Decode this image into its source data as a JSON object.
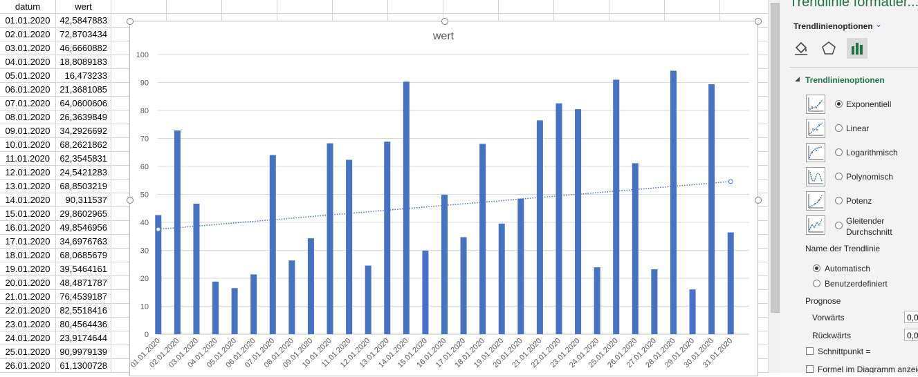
{
  "sheet": {
    "headers": {
      "date": "datum",
      "value": "wert"
    },
    "rows": [
      {
        "date": "01.01.2020",
        "value": "42,5847883"
      },
      {
        "date": "02.01.2020",
        "value": "72,8703434"
      },
      {
        "date": "03.01.2020",
        "value": "46,6660882"
      },
      {
        "date": "04.01.2020",
        "value": "18,8089183"
      },
      {
        "date": "05.01.2020",
        "value": "16,473233"
      },
      {
        "date": "06.01.2020",
        "value": "21,3681085"
      },
      {
        "date": "07.01.2020",
        "value": "64,0600606"
      },
      {
        "date": "08.01.2020",
        "value": "26,3639849"
      },
      {
        "date": "09.01.2020",
        "value": "34,2926692"
      },
      {
        "date": "10.01.2020",
        "value": "68,2621862"
      },
      {
        "date": "11.01.2020",
        "value": "62,3545831"
      },
      {
        "date": "12.01.2020",
        "value": "24,5421283"
      },
      {
        "date": "13.01.2020",
        "value": "68,8503219"
      },
      {
        "date": "14.01.2020",
        "value": "90,311537"
      },
      {
        "date": "15.01.2020",
        "value": "29,8602965"
      },
      {
        "date": "16.01.2020",
        "value": "49,8546956"
      },
      {
        "date": "17.01.2020",
        "value": "34,6976763"
      },
      {
        "date": "18.01.2020",
        "value": "68,0685679"
      },
      {
        "date": "19.01.2020",
        "value": "39,5464161"
      },
      {
        "date": "20.01.2020",
        "value": "48,4871787"
      },
      {
        "date": "21.01.2020",
        "value": "76,4539187"
      },
      {
        "date": "22.01.2020",
        "value": "82,5518416"
      },
      {
        "date": "23.01.2020",
        "value": "80,4564436"
      },
      {
        "date": "24.01.2020",
        "value": "23,9174644"
      },
      {
        "date": "25.01.2020",
        "value": "90,9979139"
      },
      {
        "date": "26.01.2020",
        "value": "61,1300728"
      }
    ]
  },
  "chart_data": {
    "type": "bar",
    "title": "wert",
    "categories": [
      "01.01.2020",
      "02.01.2020",
      "03.01.2020",
      "04.01.2020",
      "05.01.2020",
      "06.01.2020",
      "07.01.2020",
      "08.01.2020",
      "09.01.2020",
      "10.01.2020",
      "11.01.2020",
      "12.01.2020",
      "13.01.2020",
      "14.01.2020",
      "15.01.2020",
      "16.01.2020",
      "17.01.2020",
      "18.01.2020",
      "19.01.2020",
      "20.01.2020",
      "21.01.2020",
      "22.01.2020",
      "23.01.2020",
      "24.01.2020",
      "25.01.2020",
      "26.01.2020",
      "27.01.2020",
      "28.01.2020",
      "29.01.2020",
      "30.01.2020",
      "31.01.2020"
    ],
    "values": [
      42.5847883,
      72.8703434,
      46.6660882,
      18.8089183,
      16.473233,
      21.3681085,
      64.0600606,
      26.3639849,
      34.2926692,
      68.2621862,
      62.3545831,
      24.5421283,
      68.8503219,
      90.311537,
      29.8602965,
      49.8546956,
      34.6976763,
      68.0685679,
      39.5464161,
      48.4871787,
      76.4539187,
      82.5518416,
      80.4564436,
      23.9174644,
      90.9979139,
      61.1300728,
      23.2,
      94.2,
      16.0,
      89.4,
      36.4
    ],
    "ylim": [
      0,
      100
    ],
    "yticks": [
      "0",
      "10",
      "20",
      "30",
      "40",
      "50",
      "60",
      "70",
      "80",
      "90",
      "100"
    ],
    "grid": true,
    "bar_color": "#4472c4",
    "trendline": {
      "type": "exponential",
      "start": 37.5,
      "end": 54.6,
      "style": "dotted",
      "color": "#4472c4"
    }
  },
  "pane": {
    "title": "Trendlinie formatier...",
    "subtitle": "Trendlinienoptionen",
    "tab_icons": [
      "fill-bucket-icon",
      "pentagon-icon",
      "bar-chart-icon"
    ],
    "section": "Trendlinienoptionen",
    "options": [
      {
        "label": "Exponentiell",
        "selected": true
      },
      {
        "label": "Linear",
        "selected": false
      },
      {
        "label": "Logarithmisch",
        "selected": false
      },
      {
        "label": "Polynomisch",
        "selected": false
      },
      {
        "label": "Potenz",
        "selected": false
      },
      {
        "label": "Gleitender Durchschnitt",
        "selected": false
      }
    ],
    "gleitender_line1": "Gleitender",
    "gleitender_line2": "Durchschnitt",
    "name_label": "Name der Trendlinie",
    "name_auto": "Automatisch",
    "name_custom": "Benutzerdefiniert",
    "forecast_label": "Prognose",
    "forward_label": "Vorwärts",
    "forward_value": "0,0",
    "backward_label": "Rückwärts",
    "backward_value": "0,0",
    "intercept_label": "Schnittpunkt =",
    "formula_label": "Formel im Diagramm anzeig"
  },
  "colors": {
    "accent_green": "#217346",
    "bar": "#4472c4"
  }
}
